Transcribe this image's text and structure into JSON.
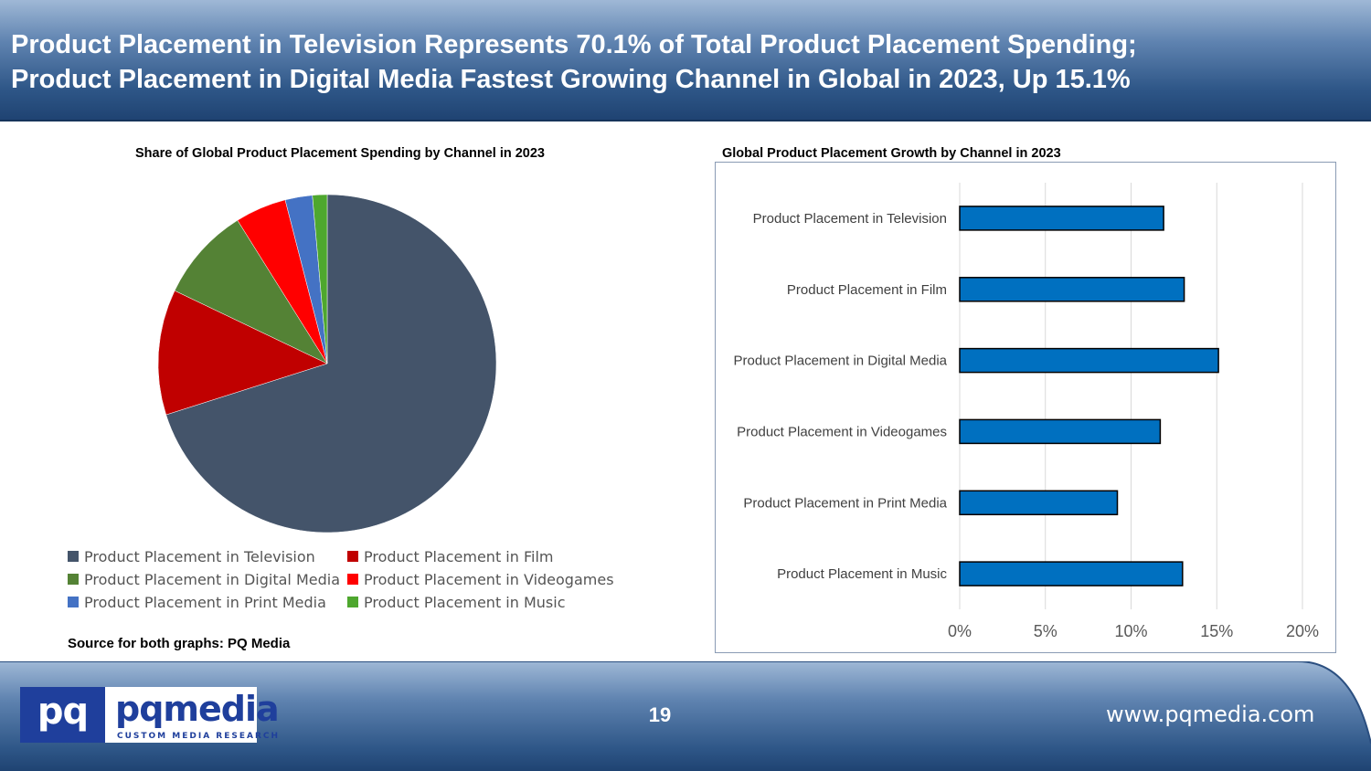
{
  "header": {
    "title_line1": "Product Placement in Television Represents 70.1% of Total Product Placement Spending;",
    "title_line2": "Product Placement in Digital Media Fastest Growing Channel in Global in 2023, Up 15.1%"
  },
  "source_note": "Source for both graphs: PQ Media",
  "chart_data": [
    {
      "type": "pie",
      "title": "Share of Global Product Placement Spending by Channel  in 2023",
      "categories": [
        "Product Placement in Television",
        "Product Placement in Film",
        "Product Placement in Digital Media",
        "Product Placement in Videogames",
        "Product Placement in Print Media",
        "Product Placement in Music"
      ],
      "values": [
        70.1,
        12.0,
        9.0,
        4.9,
        2.6,
        1.4
      ],
      "colors": [
        "#44546a",
        "#c00000",
        "#548235",
        "#ff0000",
        "#4472c4",
        "#4ea72e"
      ],
      "slice_order": [
        0,
        1,
        2,
        3,
        4,
        5
      ],
      "start_angle_deg": 0,
      "direction": "clockwise",
      "legend_position": "bottom",
      "legend_order": [
        0,
        1,
        2,
        3,
        4,
        5
      ]
    },
    {
      "type": "bar",
      "orientation": "horizontal",
      "title": "Global Product Placement Growth by Channel in 2023",
      "categories": [
        "Product Placement in Television",
        "Product Placement in Film",
        "Product Placement in Digital Media",
        "Product Placement in Videogames",
        "Product Placement in Print Media",
        "Product Placement in Music"
      ],
      "values": [
        11.9,
        13.1,
        15.1,
        11.7,
        9.2,
        13.0
      ],
      "unit": "%",
      "xlim": [
        0,
        20
      ],
      "xticks": [
        "0%",
        "5%",
        "10%",
        "15%",
        "20%"
      ],
      "xtick_values": [
        0,
        5,
        10,
        15,
        20
      ],
      "bar_color": "#0070c0",
      "bar_border": "#000000",
      "grid": "vertical"
    }
  ],
  "footer": {
    "logo_mark": "pq",
    "logo_name": "pqmedia",
    "logo_tagline": "CUSTOM MEDIA RESEARCH",
    "page_number": "19",
    "website": "www.pqmedia.com"
  }
}
